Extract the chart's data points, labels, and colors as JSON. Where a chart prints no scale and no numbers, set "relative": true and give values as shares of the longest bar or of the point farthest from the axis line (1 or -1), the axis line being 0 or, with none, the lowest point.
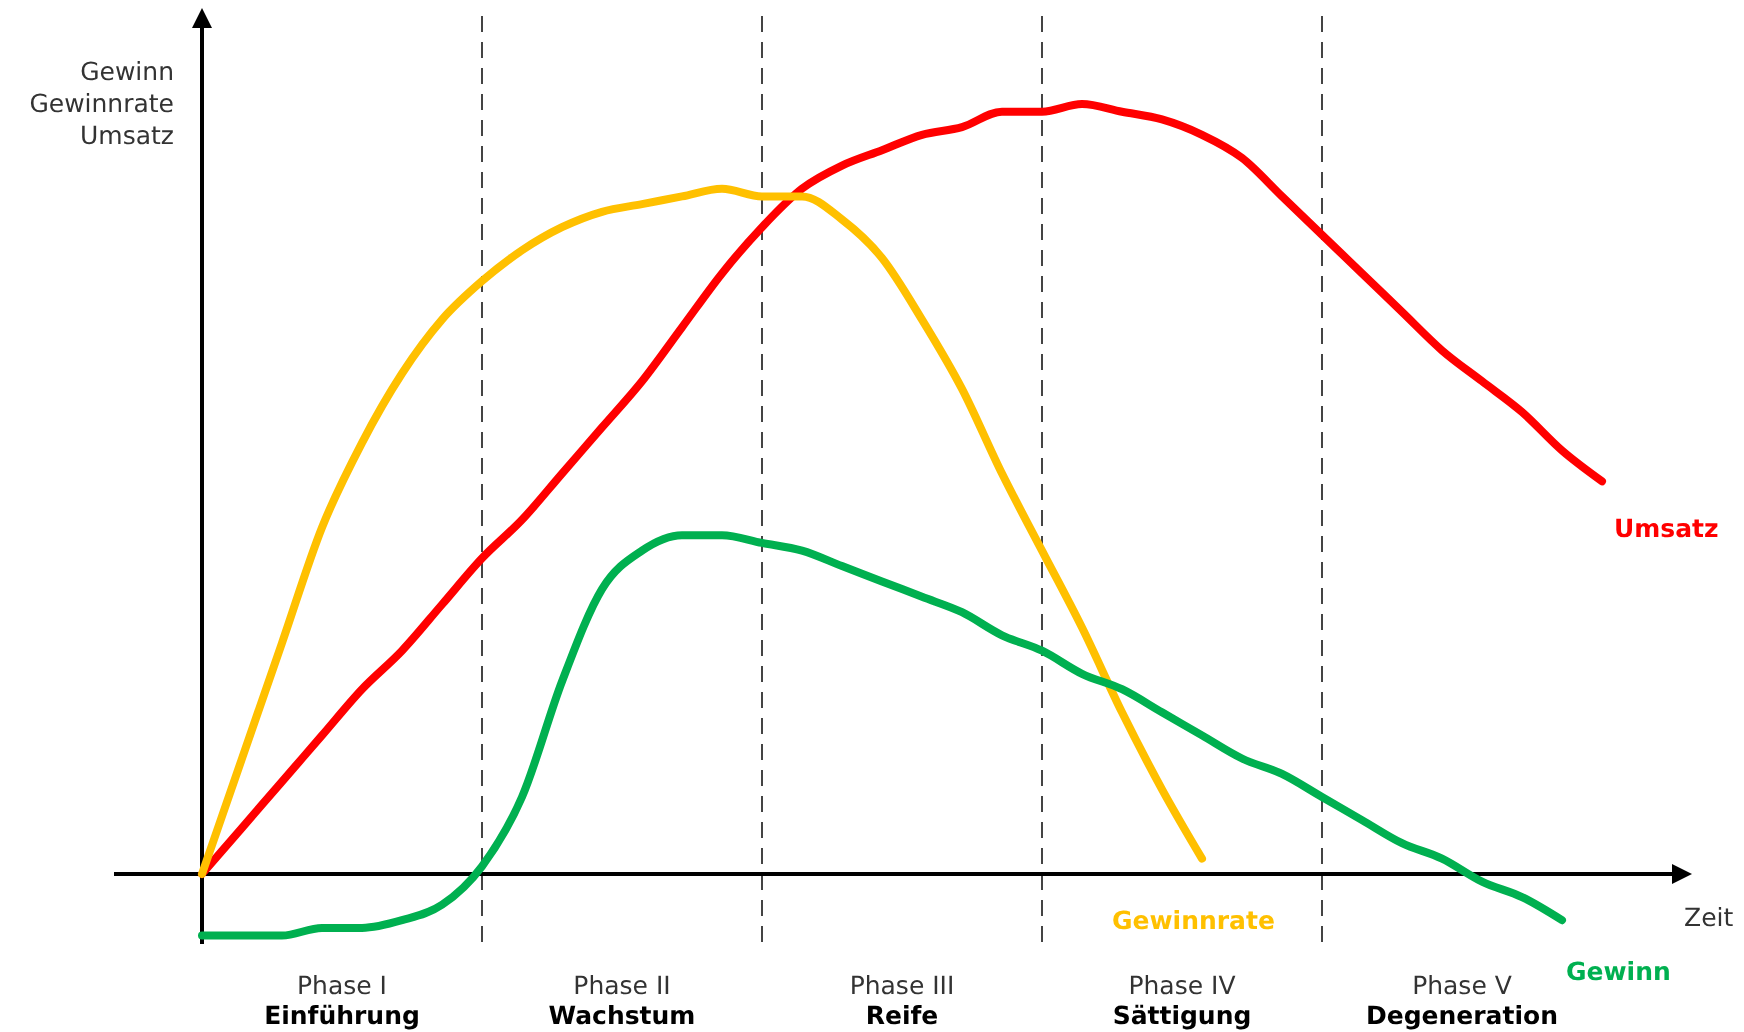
{
  "chart_data": {
    "type": "line",
    "relative": true,
    "xlabel": "Zeit",
    "ylabel": "Gewinn\nGewinnrate\nUmsatz",
    "legend": false,
    "line_style": "solid",
    "marker": "none",
    "categories": [
      null,
      null,
      null,
      null,
      null,
      null,
      null,
      null,
      null,
      null,
      null,
      null,
      null,
      null,
      null,
      null,
      null,
      null,
      null,
      null,
      null,
      null,
      null,
      null,
      null,
      null,
      null,
      null,
      null,
      null,
      null,
      null,
      null,
      null,
      null,
      null
    ],
    "series": [
      {
        "name": "Umsatz",
        "color": "#ff0000",
        "values": [
          0,
          0.06,
          0.12,
          0.18,
          0.24,
          0.29,
          0.35,
          0.41,
          0.46,
          0.52,
          0.58,
          0.64,
          0.71,
          0.78,
          0.84,
          0.89,
          0.92,
          0.94,
          0.96,
          0.97,
          0.99,
          0.99,
          1,
          0.99,
          0.98,
          0.96,
          0.93,
          0.88,
          0.83,
          0.78,
          0.73,
          0.68,
          0.64,
          0.6,
          0.55,
          0.51
        ]
      },
      {
        "name": "Gewinnrate",
        "color": "#ffc000",
        "values": [
          0,
          0.15,
          0.3,
          0.45,
          0.56,
          0.65,
          0.72,
          0.77,
          0.81,
          0.84,
          0.86,
          0.87,
          0.88,
          0.89,
          0.88,
          0.88,
          0.85,
          0.8,
          0.72,
          0.63,
          0.52,
          0.42,
          0.32,
          0.21,
          0.11,
          0.02,
          null,
          null,
          null,
          null,
          null,
          null,
          null,
          null,
          null,
          null
        ]
      },
      {
        "name": "Gewinn",
        "color": "#00b050",
        "values": [
          -0.08,
          -0.08,
          -0.08,
          -0.07,
          -0.07,
          -0.06,
          -0.04,
          0.01,
          0.1,
          0.25,
          0.37,
          0.42,
          0.44,
          0.44,
          0.43,
          0.42,
          0.4,
          0.38,
          0.36,
          0.34,
          0.31,
          0.29,
          0.26,
          0.24,
          0.21,
          0.18,
          0.15,
          0.13,
          0.1,
          0.07,
          0.04,
          0.02,
          -0.01,
          -0.03,
          -0.06,
          null
        ]
      }
    ],
    "grid": "x",
    "annotations": [
      "Phase I\nEinführung",
      "Phase II\nWachstum",
      "Phase III\nReife",
      "Phase IV\nSättigung",
      "Phase V\nDegeneration"
    ]
  }
}
